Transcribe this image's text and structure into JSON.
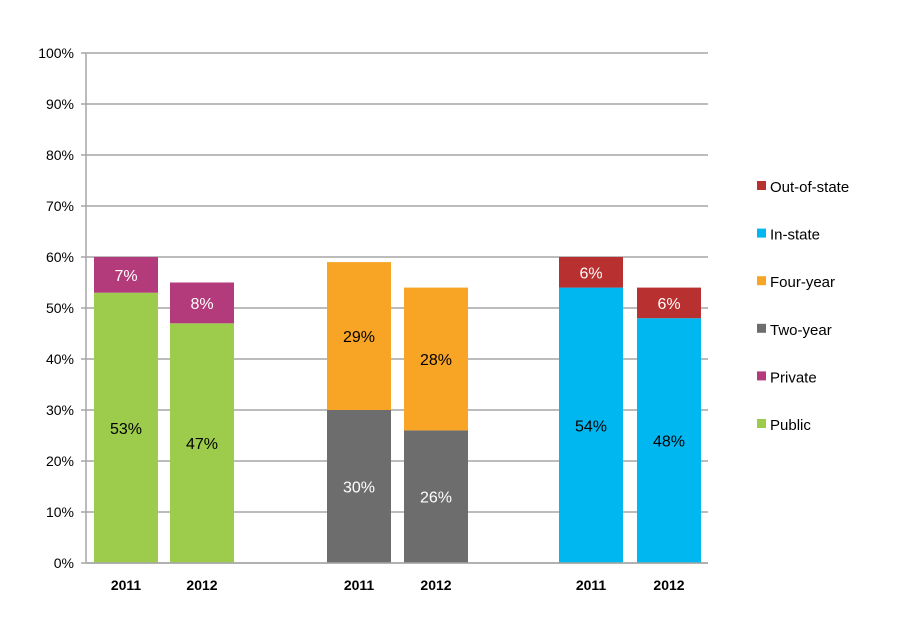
{
  "chart_data": {
    "type": "bar",
    "stacked": true,
    "categories": [
      "2011",
      "2012",
      "2011",
      "2012",
      "2011",
      "2012"
    ],
    "groups": [
      [
        0,
        1
      ],
      [
        2,
        3
      ],
      [
        4,
        5
      ]
    ],
    "ylim": [
      0,
      100
    ],
    "yticks": [
      "0%",
      "10%",
      "20%",
      "30%",
      "40%",
      "50%",
      "60%",
      "70%",
      "80%",
      "90%",
      "100%"
    ],
    "grid": true,
    "legend_position": "right",
    "series": [
      {
        "name": "Public",
        "color": "#9DCB4C",
        "values": [
          53,
          47,
          null,
          null,
          null,
          null
        ],
        "labels": [
          "53%",
          "47%",
          null,
          null,
          null,
          null
        ],
        "label_color": "#000000"
      },
      {
        "name": "Private",
        "color": "#B33A7B",
        "values": [
          7,
          8,
          null,
          null,
          null,
          null
        ],
        "labels": [
          "7%",
          "8%",
          null,
          null,
          null,
          null
        ],
        "label_color": "#FFFFFF"
      },
      {
        "name": "Two-year",
        "color": "#6D6D6D",
        "values": [
          null,
          null,
          30,
          26,
          null,
          null
        ],
        "labels": [
          null,
          null,
          "30%",
          "26%",
          null,
          null
        ],
        "label_color": "#FFFFFF"
      },
      {
        "name": "Four-year",
        "color": "#F8A424",
        "values": [
          null,
          null,
          29,
          28,
          null,
          null
        ],
        "labels": [
          null,
          null,
          "29%",
          "28%",
          null,
          null
        ],
        "label_color": "#000000"
      },
      {
        "name": "In-state",
        "color": "#00B7F0",
        "values": [
          null,
          null,
          null,
          null,
          54,
          48
        ],
        "labels": [
          null,
          null,
          null,
          null,
          "54%",
          "48%"
        ],
        "label_color": "#000000"
      },
      {
        "name": "Out-of-state",
        "color": "#B8302F",
        "values": [
          null,
          null,
          null,
          null,
          6,
          6
        ],
        "labels": [
          null,
          null,
          null,
          null,
          "6%",
          "6%"
        ],
        "label_color": "#FFFFFF"
      }
    ],
    "legend_order": [
      "Out-of-state",
      "In-state",
      "Four-year",
      "Two-year",
      "Private",
      "Public"
    ]
  }
}
